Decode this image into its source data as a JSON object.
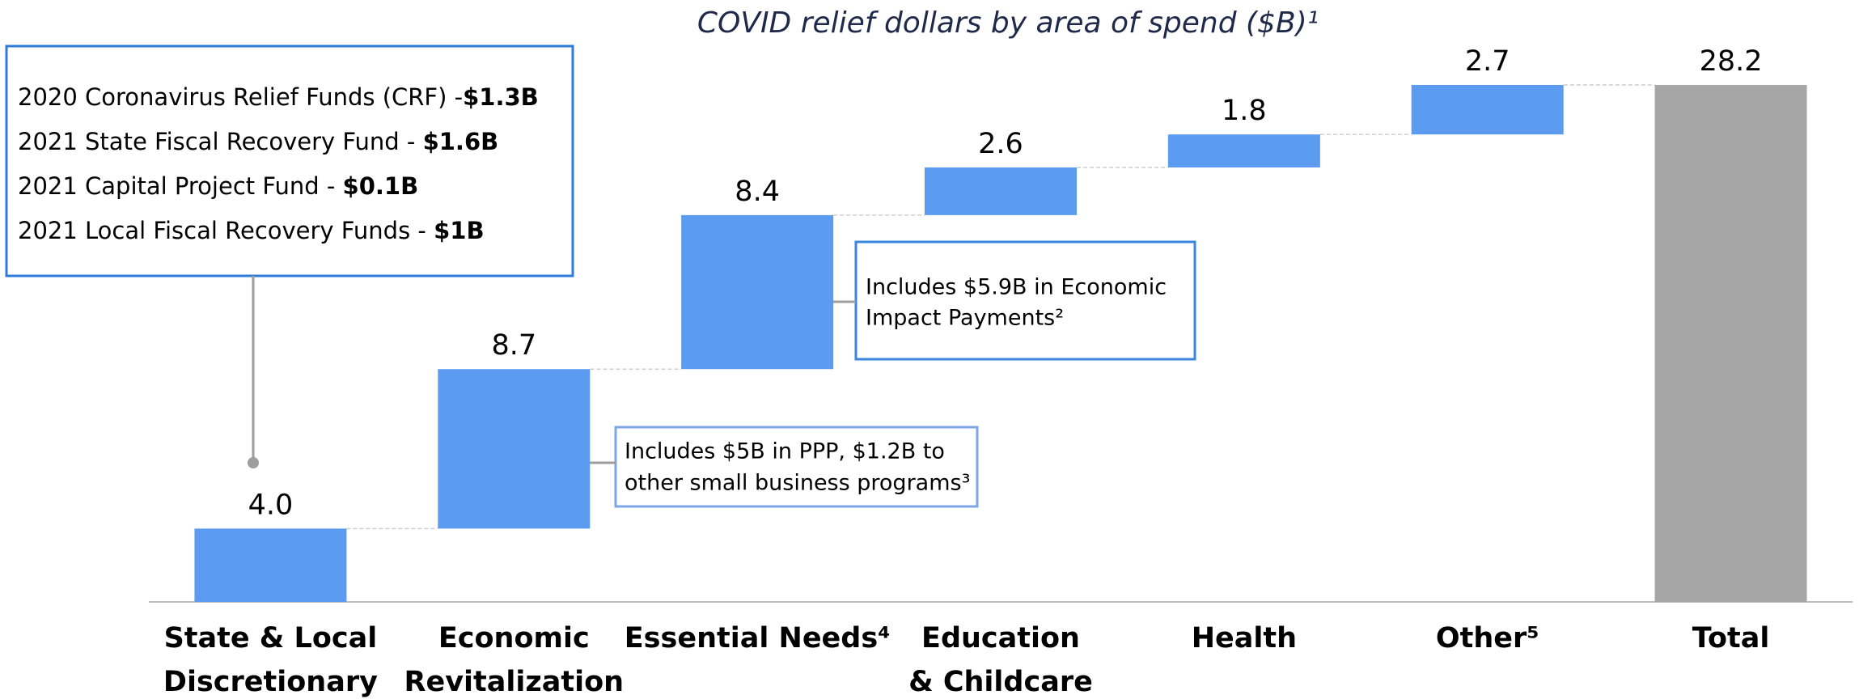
{
  "chart_data": {
    "type": "waterfall",
    "title": "COVID relief dollars by area of spend ($B)¹",
    "categories": [
      [
        "State & Local",
        "Discretionary"
      ],
      [
        "Economic",
        "Revitalization"
      ],
      [
        "Essential Needs⁴"
      ],
      [
        "Education",
        "& Childcare"
      ],
      [
        "Health"
      ],
      [
        "Other⁵"
      ],
      [
        "Total"
      ]
    ],
    "values": [
      4.0,
      8.7,
      8.4,
      2.6,
      1.8,
      2.7,
      28.2
    ],
    "value_labels": [
      "4.0",
      "8.7",
      "8.4",
      "2.6",
      "1.8",
      "2.7",
      "28.2"
    ],
    "is_total": [
      false,
      false,
      false,
      false,
      false,
      false,
      true
    ],
    "color": "#5b9cf0",
    "total_color": "#a6a6a6",
    "ylim": [
      0,
      28.2
    ],
    "annotations": {
      "state_local": [
        {
          "text": "2020 Coronavirus Relief Funds (CRF) -",
          "amount": "$1.3B"
        },
        {
          "text": "2021 State Fiscal Recovery Fund - ",
          "amount": "$1.6B"
        },
        {
          "text": "2021 Capital Project Fund - ",
          "amount": "$0.1B"
        },
        {
          "text": "2021 Local Fiscal Recovery Funds - ",
          "amount": "$1B"
        }
      ],
      "economic": [
        "Includes $5B in PPP, $1.2B to",
        "other small business programs³"
      ],
      "essential": [
        "Includes $5.9B in Economic",
        "Impact Payments²"
      ]
    }
  }
}
